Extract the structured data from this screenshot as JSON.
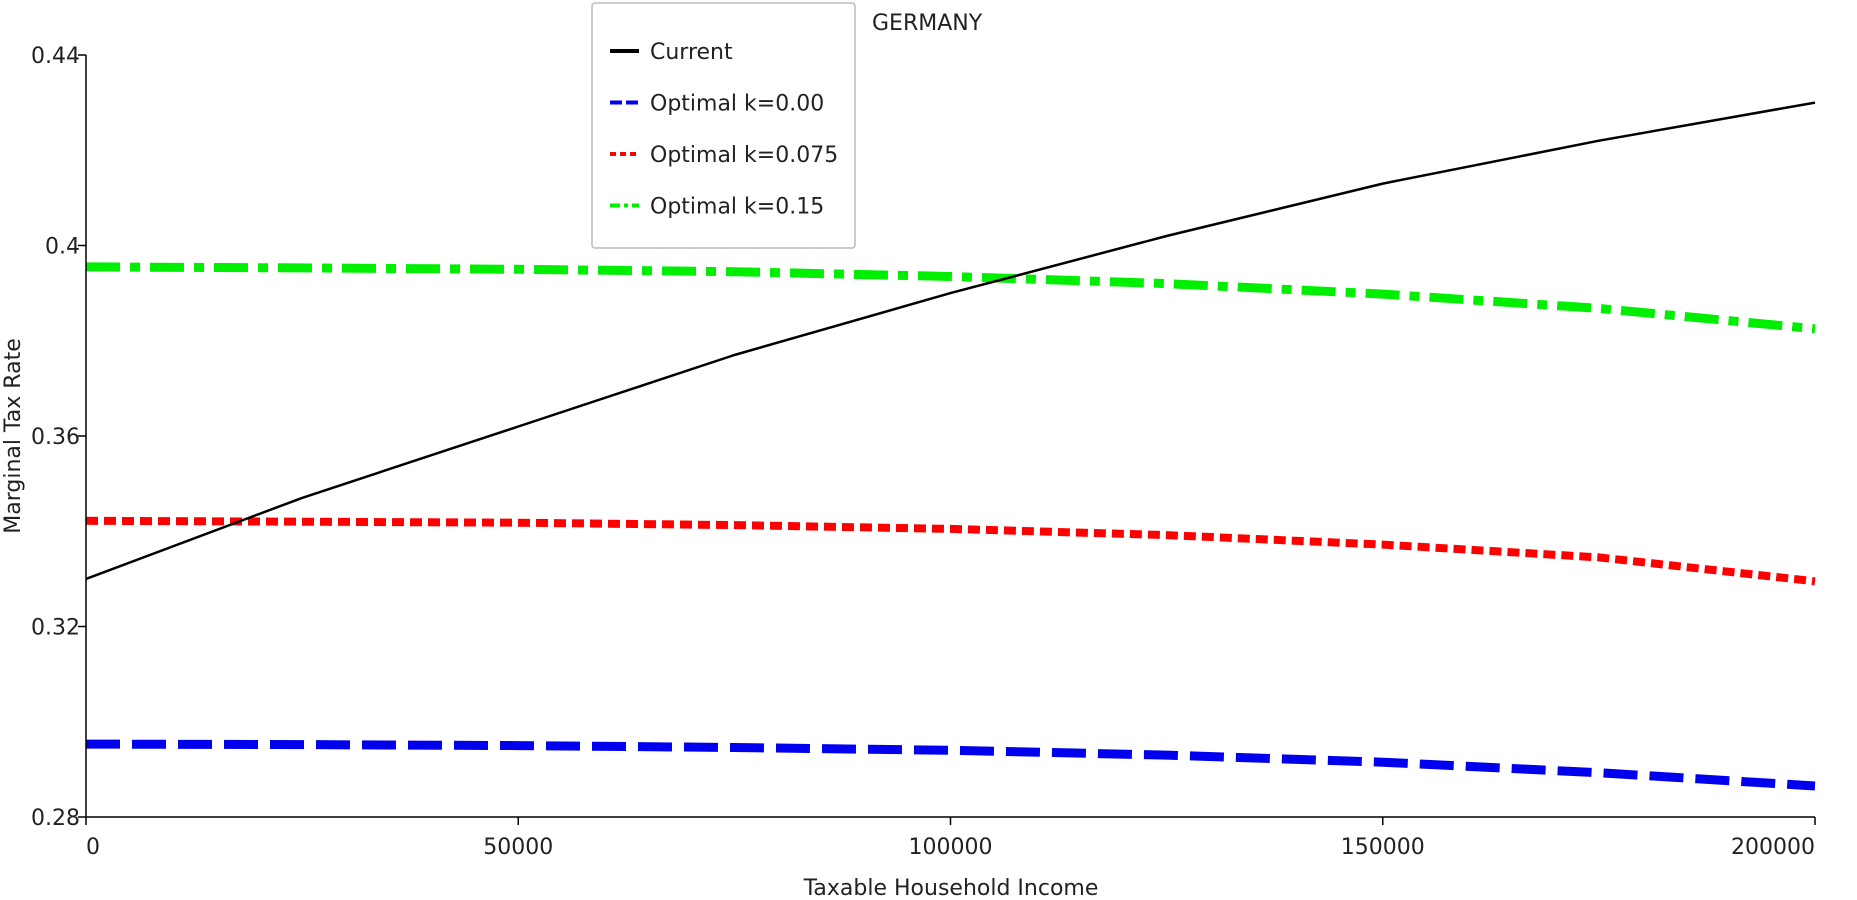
{
  "chart_data": {
    "type": "line",
    "title": "GERMANY",
    "xlabel": "Taxable Household Income",
    "ylabel": "Marginal Tax Rate",
    "xlim": [
      0,
      200000
    ],
    "ylim": [
      0.28,
      0.44
    ],
    "xticks": [
      0,
      50000,
      100000,
      150000,
      200000
    ],
    "xtick_labels": [
      "0",
      "50000",
      "100000",
      "150000",
      "200000"
    ],
    "yticks": [
      0.28,
      0.32,
      0.36,
      0.4,
      0.44
    ],
    "ytick_labels": [
      "0.28",
      "0.32",
      "0.36",
      "0.4",
      "0.44"
    ],
    "grid": false,
    "legend_position": "top-left",
    "x": [
      0,
      25000,
      50000,
      75000,
      100000,
      125000,
      150000,
      175000,
      200000
    ],
    "series": [
      {
        "name": "Current",
        "color": "#000000",
        "dash": "solid",
        "values": [
          0.33,
          0.347,
          0.362,
          0.377,
          0.39,
          0.402,
          0.413,
          0.422,
          0.43
        ]
      },
      {
        "name": "Optimal k=0.00",
        "color": "#0000ee",
        "dash": "dash",
        "values": [
          0.2953,
          0.2952,
          0.295,
          0.2946,
          0.294,
          0.293,
          0.2915,
          0.2893,
          0.2865
        ]
      },
      {
        "name": "Optimal k=0.075",
        "color": "#ff0000",
        "dash": "dot",
        "values": [
          0.3422,
          0.342,
          0.3418,
          0.3413,
          0.3405,
          0.3392,
          0.3372,
          0.3345,
          0.3295
        ]
      },
      {
        "name": "Optimal k=0.15",
        "color": "#00ee00",
        "dash": "dashdot",
        "values": [
          0.3955,
          0.3953,
          0.395,
          0.3945,
          0.3935,
          0.392,
          0.3898,
          0.3868,
          0.3825
        ]
      }
    ]
  }
}
